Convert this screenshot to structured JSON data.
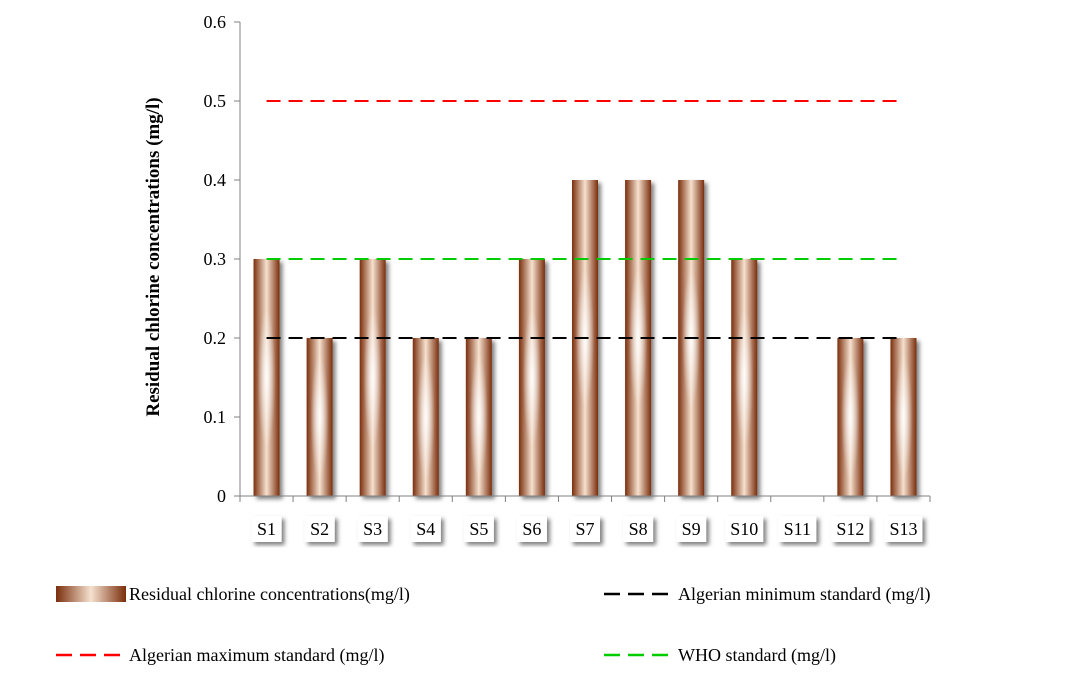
{
  "chart_data": {
    "type": "bar",
    "categories": [
      "S1",
      "S2",
      "S3",
      "S4",
      "S5",
      "S6",
      "S7",
      "S8",
      "S9",
      "S10",
      "S11",
      "S12",
      "S13"
    ],
    "series": [
      {
        "name": "Residual chlorine concentrations(mg/l)",
        "values": [
          0.3,
          0.2,
          0.3,
          0.2,
          0.2,
          0.3,
          0.4,
          0.4,
          0.4,
          0.3,
          0,
          0.2,
          0.2
        ]
      }
    ],
    "reference_lines": [
      {
        "name": "Algerian minimum standard (mg/l)",
        "value": 0.2,
        "color": "#000000"
      },
      {
        "name": "Algerian maximum standard (mg/l)",
        "value": 0.5,
        "color": "#ff0000"
      },
      {
        "name": "WHO standard (mg/l)",
        "value": 0.3,
        "color": "#00cc00"
      }
    ],
    "title": "",
    "xlabel": "",
    "ylabel": "Residual chlorine concentrations (mg/l)",
    "ylim": [
      0,
      0.6
    ],
    "yticks": [
      "0",
      "0.1",
      "0.2",
      "0.3",
      "0.4",
      "0.5",
      "0.6"
    ],
    "grid": false,
    "legend": "bottom",
    "bar_color": "#8b3a14"
  }
}
